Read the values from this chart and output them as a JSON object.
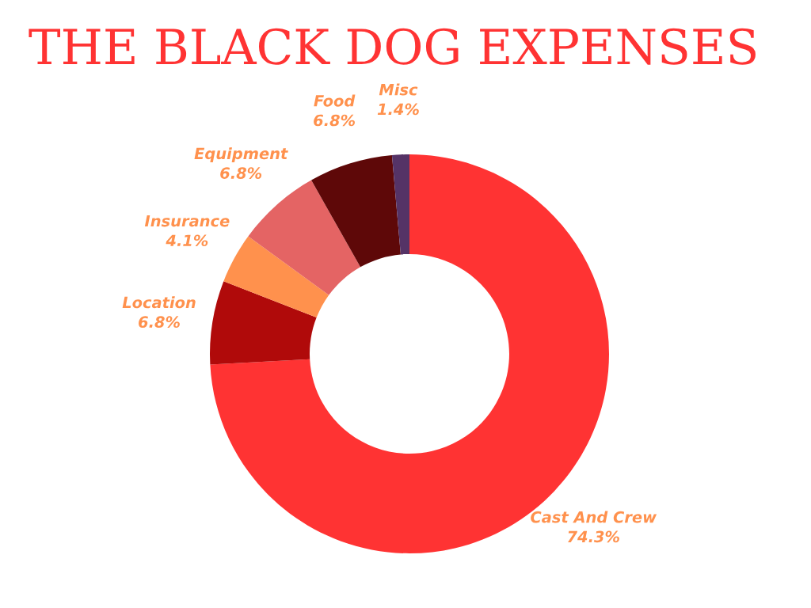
{
  "chart_data": {
    "type": "donut",
    "title": "THE BLACK DOG EXPENSES",
    "categories": [
      "Cast And Crew",
      "Location",
      "Insurance",
      "Equipment",
      "Food",
      "Misc"
    ],
    "values": [
      74.3,
      6.8,
      4.1,
      6.8,
      6.8,
      1.4
    ],
    "colors": [
      "#ff3333",
      "#b00a0a",
      "#ff914d",
      "#e46464",
      "#5e0808",
      "#553366"
    ],
    "value_labels": [
      "74.3%",
      "6.8%",
      "4.1%",
      "6.8%",
      "6.8%",
      "1.4%"
    ],
    "legend": false
  }
}
